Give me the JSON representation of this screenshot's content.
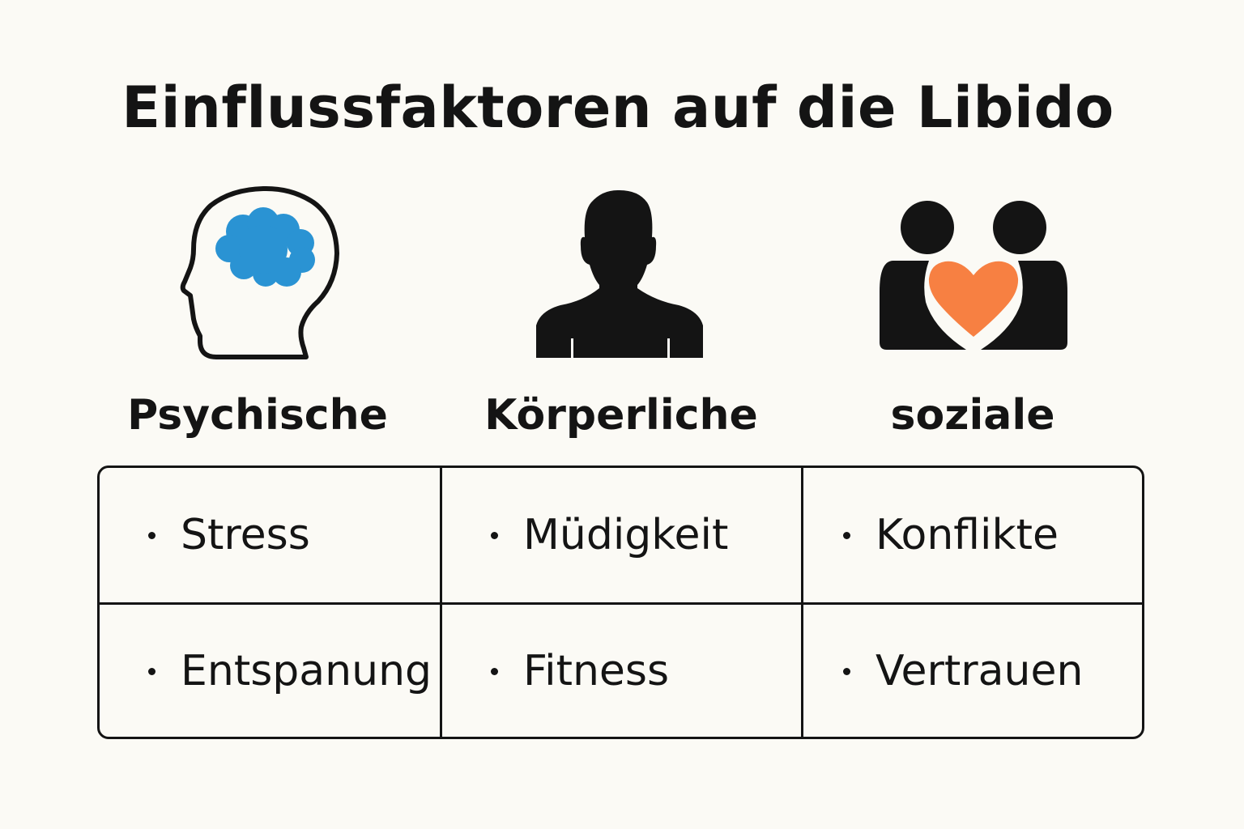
{
  "title": "Einflussfaktoren auf die Libido",
  "colors": {
    "background": "#fbfaf5",
    "ink": "#141414",
    "brain": "#2a93d3",
    "heart": "#f78042"
  },
  "categories": [
    {
      "label": "Psychische",
      "icon": "head-brain-icon",
      "items": [
        "Stress",
        "Entspanung"
      ]
    },
    {
      "label": "Körperliche",
      "icon": "body-silhouette-icon",
      "items": [
        "Müdigkeit",
        "Fitness"
      ]
    },
    {
      "label": "soziale",
      "icon": "couple-heart-icon",
      "items": [
        "Konflikte",
        "Vertrauen"
      ]
    }
  ]
}
